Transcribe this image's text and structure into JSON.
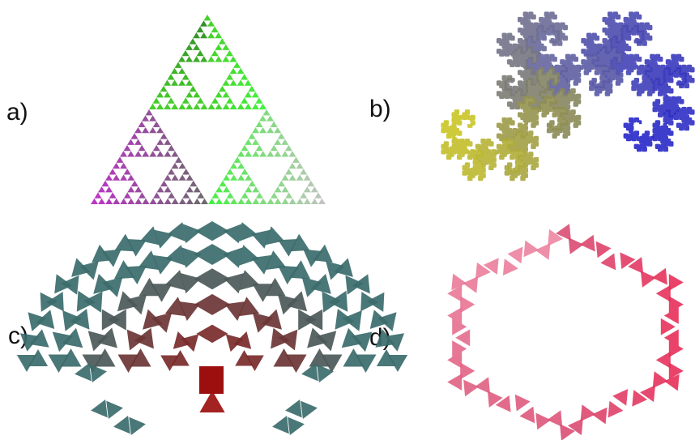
{
  "panels": [
    {
      "label": "a)",
      "fractal": "sierpinski-triangle",
      "colors": [
        "#33cc14",
        "#1a7a10",
        "#b81cc4",
        "#5b5b5b",
        "#2ff02a",
        "#9aa89a",
        "#bdbdbd"
      ]
    },
    {
      "label": "b)",
      "fractal": "dragon-curve",
      "colors": [
        "#2626c9",
        "#6a6a9a",
        "#8a8a55",
        "#c9c425"
      ]
    },
    {
      "label": "c)",
      "fractal": "pythagoras-tree",
      "colors": [
        "#3b6b6b",
        "#6b3535",
        "#9b0f0f"
      ]
    },
    {
      "label": "d)",
      "fractal": "koch-snowflake",
      "colors": [
        "#e8234f",
        "#f08aa6",
        "#d94970"
      ]
    }
  ]
}
